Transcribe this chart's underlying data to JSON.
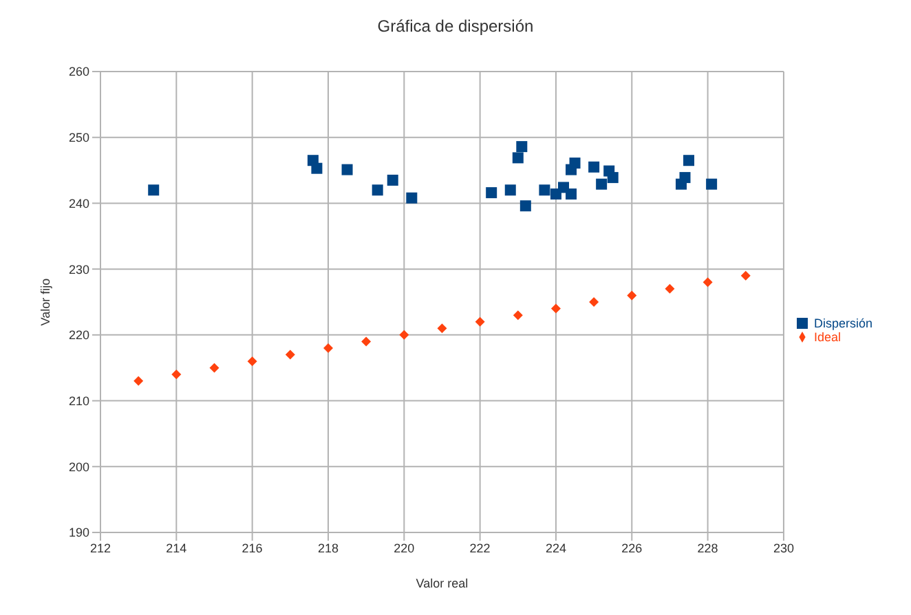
{
  "chart_data": {
    "type": "scatter",
    "title": "Gráfica de dispersión",
    "xlabel": "Valor real",
    "ylabel": "Valor fijo",
    "xlim": [
      212,
      230
    ],
    "xticks": [
      212,
      214,
      216,
      218,
      220,
      222,
      224,
      226,
      228,
      230
    ],
    "ylim": [
      190,
      260
    ],
    "yticks": [
      190,
      200,
      210,
      220,
      230,
      240,
      250,
      260
    ],
    "grid": true,
    "legend": "right",
    "series": [
      {
        "name": "Dispersión",
        "color": "#004586",
        "marker": "square",
        "x": [
          213.4,
          217.6,
          217.7,
          218.5,
          219.3,
          219.7,
          220.2,
          222.3,
          222.8,
          223,
          223.1,
          223.2,
          223.7,
          224,
          224.2,
          224.4,
          224.4,
          224.5,
          225,
          225.2,
          225.4,
          225.5,
          227.3,
          227.5,
          227.4,
          228.1
        ],
        "values": [
          242,
          246.5,
          245.3,
          245.1,
          242,
          243.5,
          240.8,
          241.6,
          242,
          246.9,
          248.6,
          239.6,
          242,
          241.4,
          242.4,
          241.4,
          245.1,
          246.1,
          245.5,
          242.9,
          244.9,
          243.9,
          242.9,
          246.5,
          243.9,
          242.9
        ]
      },
      {
        "name": "Ideal",
        "color": "#ff420e",
        "marker": "diamond",
        "x": [
          213,
          214,
          215,
          216,
          217,
          218,
          219,
          220,
          221,
          222,
          223,
          224,
          225,
          226,
          227,
          228,
          229
        ],
        "values": [
          213,
          214,
          215,
          216,
          217,
          218,
          219,
          220,
          221,
          222,
          223,
          224,
          225,
          226,
          227,
          228,
          229
        ]
      }
    ]
  }
}
